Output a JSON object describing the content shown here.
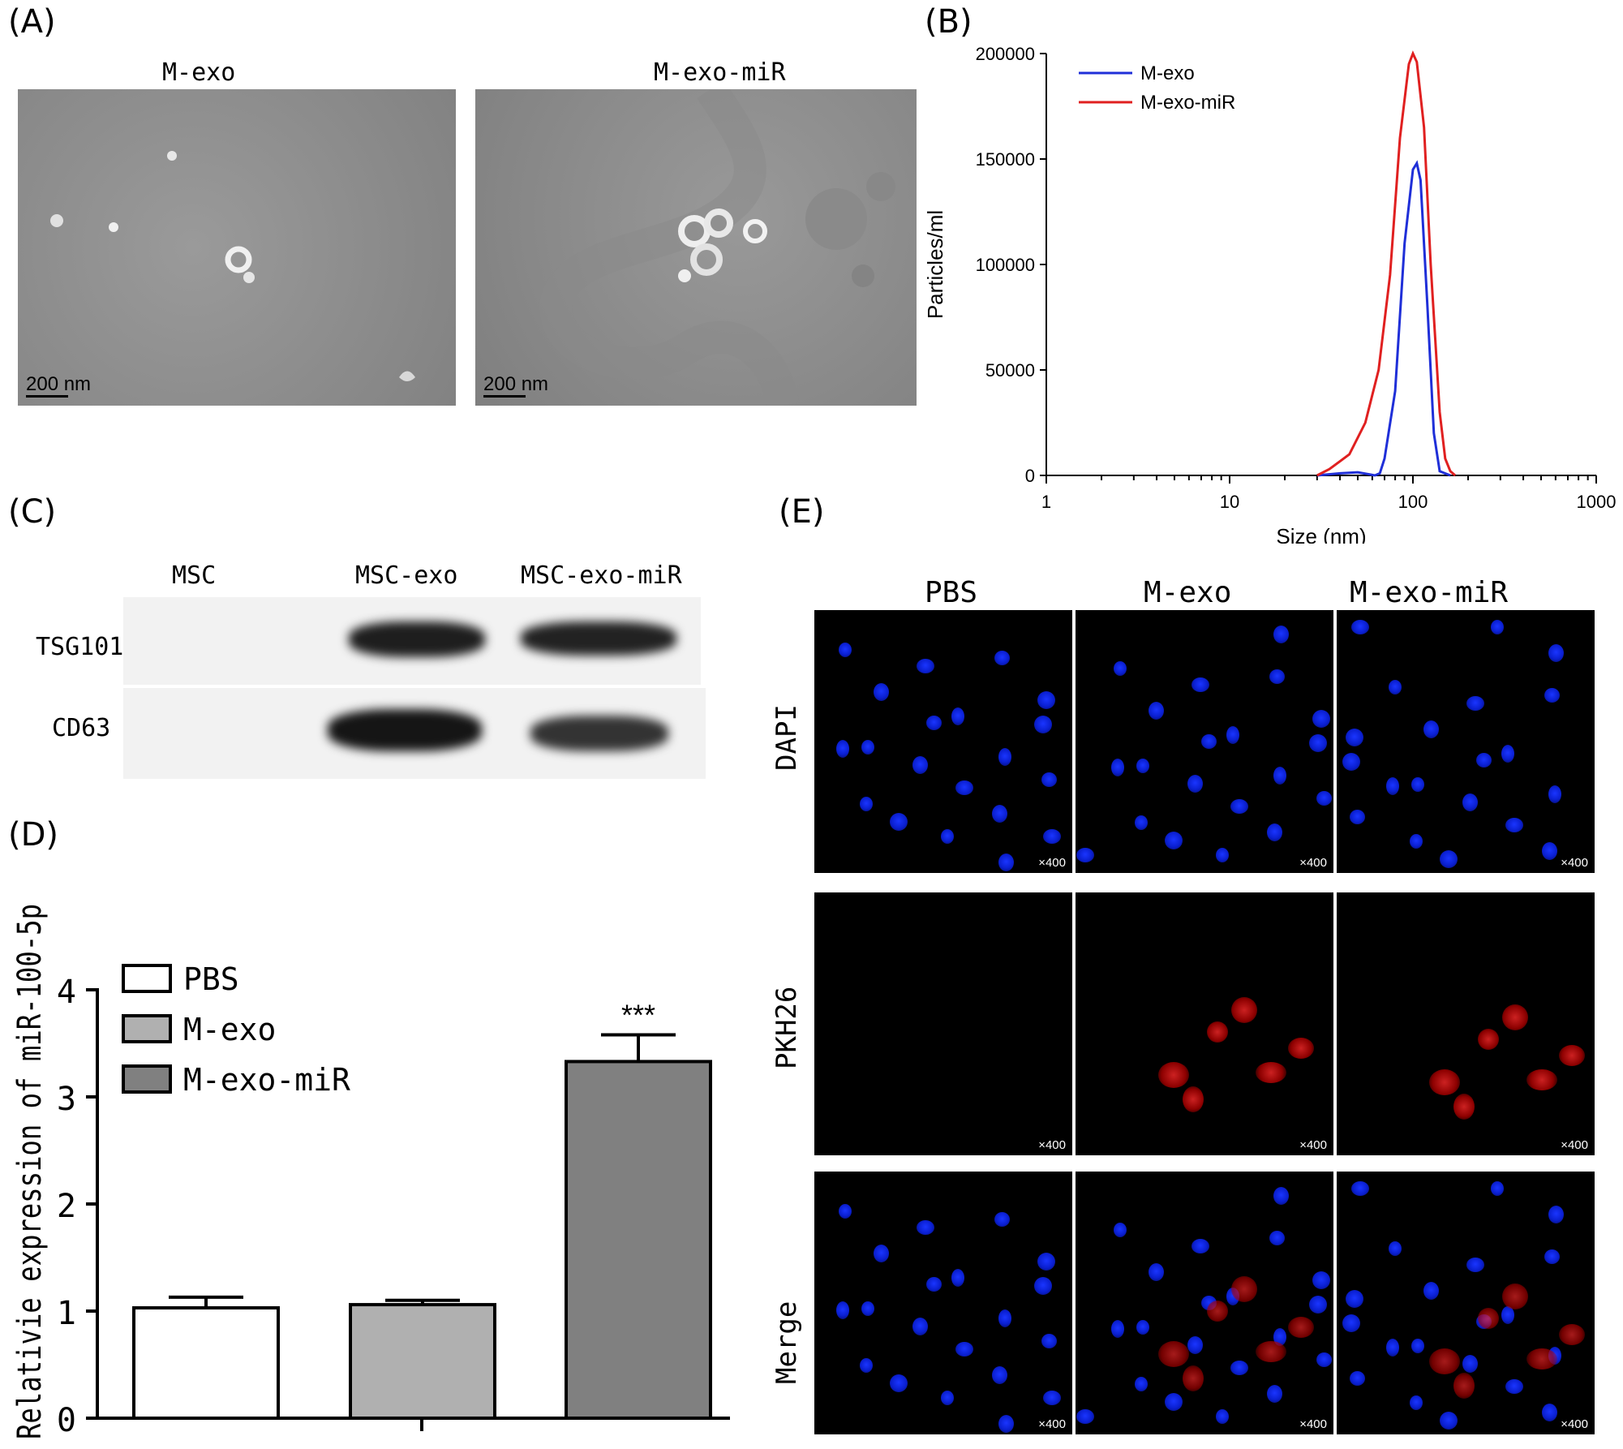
{
  "panels": {
    "a": {
      "label": "(A)",
      "left_title": "M-exo",
      "right_title": "M-exo-miR",
      "scale_left": "200 nm",
      "scale_right": "200 nm"
    },
    "b": {
      "label": "(B)"
    },
    "c": {
      "label": "(C)",
      "cols": [
        "MSC",
        "MSC-exo",
        "MSC-exo-miR"
      ],
      "rows": [
        "TSG101",
        "CD63"
      ]
    },
    "d": {
      "label": "(D)",
      "sig": "***"
    },
    "e": {
      "label": "(E)",
      "cols": [
        "PBS",
        "M-exo",
        "M-exo-miR"
      ],
      "rows": [
        "DAPI",
        "PKH26",
        "Merge"
      ],
      "magnification": "×400"
    }
  },
  "chart_data": [
    {
      "type": "line",
      "xlabel": "Size (nm)",
      "ylabel": "Particles/ml",
      "x_scale": "log",
      "xlim": [
        1,
        1000
      ],
      "ylim": [
        0,
        200000
      ],
      "x_ticks": [
        "1",
        "10",
        "100",
        "1000"
      ],
      "y_ticks": [
        "0",
        "50000",
        "100000",
        "150000",
        "200000"
      ],
      "legend_position": "top-left",
      "series": [
        {
          "name": "M-exo",
          "color": "#1f2fd8",
          "x": [
            30,
            40,
            50,
            58,
            62,
            66,
            70,
            80,
            90,
            100,
            105,
            110,
            120,
            130,
            140,
            160
          ],
          "y": [
            0,
            1000,
            1500,
            500,
            0,
            1000,
            8000,
            40000,
            110000,
            145000,
            148000,
            140000,
            80000,
            20000,
            2000,
            0
          ]
        },
        {
          "name": "M-exo-miR",
          "color": "#e02020",
          "x": [
            30,
            35,
            45,
            55,
            65,
            75,
            85,
            95,
            100,
            105,
            115,
            125,
            140,
            150,
            160,
            170
          ],
          "y": [
            0,
            3000,
            10000,
            25000,
            50000,
            95000,
            160000,
            195000,
            200000,
            196000,
            165000,
            100000,
            30000,
            8000,
            2000,
            0
          ]
        }
      ]
    },
    {
      "type": "bar",
      "ylabel": "Relativie expression of miR-100-5p",
      "ylim": [
        0,
        4
      ],
      "y_ticks": [
        "0",
        "1",
        "2",
        "3",
        "4"
      ],
      "categories": [
        "PBS",
        "M-exo",
        "M-exo-miR"
      ],
      "values": [
        1.03,
        1.06,
        3.33
      ],
      "errors": [
        0.1,
        0.04,
        0.25
      ],
      "colors": [
        "#ffffff",
        "#b0b0b0",
        "#808080"
      ],
      "legend_position": "top-left"
    }
  ]
}
